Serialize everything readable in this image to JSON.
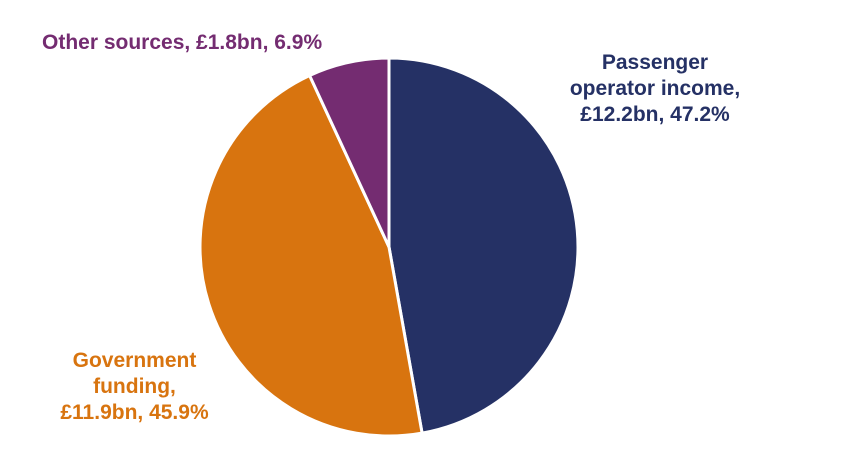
{
  "colors": {
    "passenger": "#253165",
    "government": "#d8740f",
    "other": "#742c71",
    "separator": "#ffffff"
  },
  "chart_data": {
    "type": "pie",
    "title": "",
    "start_angle_deg": 0,
    "direction": "clockwise",
    "slices": [
      {
        "key": "passenger",
        "label_lines": [
          "Passenger",
          "operator income,",
          "£12.2bn, 47.2%"
        ],
        "value_bn": 12.2,
        "percent": 47.2
      },
      {
        "key": "government",
        "label_lines": [
          "Government",
          "funding,",
          "£11.9bn, 45.9%"
        ],
        "value_bn": 11.9,
        "percent": 45.9
      },
      {
        "key": "other",
        "label_lines": [
          "Other sources, £1.8bn, 6.9%"
        ],
        "value_bn": 1.8,
        "percent": 6.9
      }
    ]
  }
}
